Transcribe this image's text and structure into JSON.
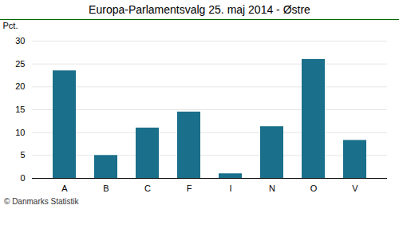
{
  "chart_data": {
    "type": "bar",
    "title": "Europa-Parlamentsvalg 25. maj 2014 - Østre",
    "categories": [
      "A",
      "B",
      "C",
      "F",
      "I",
      "N",
      "O",
      "V"
    ],
    "values": [
      23.5,
      5.0,
      11.0,
      14.5,
      1.0,
      11.3,
      26.0,
      8.3
    ],
    "color": "#1a6f8a",
    "ylabel": "Pct.",
    "ylim": [
      0,
      30
    ],
    "yticks": [
      0,
      5,
      10,
      15,
      20,
      25,
      30
    ],
    "grid": true,
    "annotations": [
      "© Danmarks Statistik"
    ]
  }
}
